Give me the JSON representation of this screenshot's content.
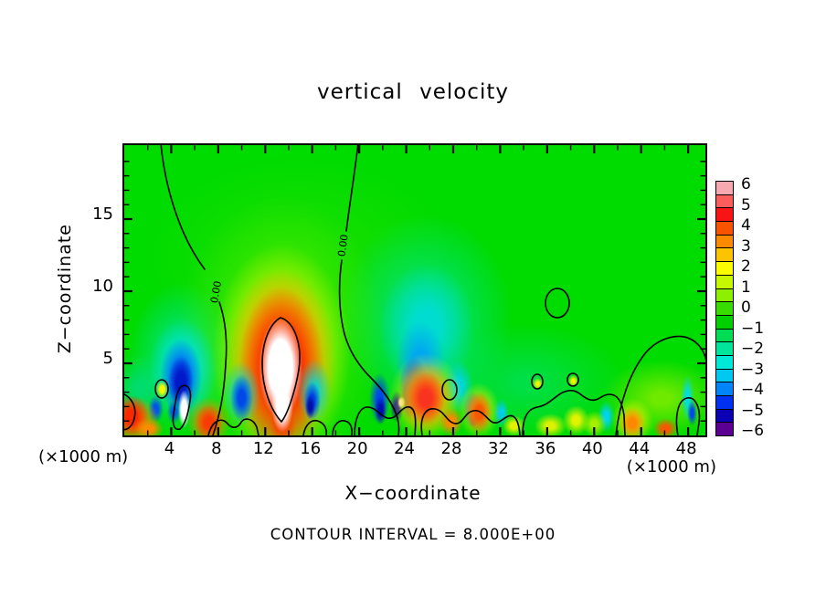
{
  "title": "vertical velocity",
  "plot": {
    "y_axis": {
      "label": "Z−coordinate",
      "unit": "(×1000 m)",
      "tick_labels": [
        {
          "v": 5,
          "label": "5"
        },
        {
          "v": 10,
          "label": "10"
        },
        {
          "v": 15,
          "label": "15"
        }
      ]
    },
    "x_axis": {
      "label": "X−coordinate",
      "unit": "(×1000 m)",
      "tick_labels": [
        {
          "v": 4,
          "label": "4"
        },
        {
          "v": 8,
          "label": "8"
        },
        {
          "v": 12,
          "label": "12"
        },
        {
          "v": 16,
          "label": "16"
        },
        {
          "v": 20,
          "label": "20"
        },
        {
          "v": 24,
          "label": "24"
        },
        {
          "v": 28,
          "label": "28"
        },
        {
          "v": 32,
          "label": "32"
        },
        {
          "v": 36,
          "label": "36"
        },
        {
          "v": 40,
          "label": "40"
        },
        {
          "v": 44,
          "label": "44"
        },
        {
          "v": 48,
          "label": "48"
        }
      ]
    },
    "zero_contour_text": "0.00"
  },
  "footer": {
    "contour_interval": "CONTOUR INTERVAL = 8.000E+00"
  },
  "colorbar": {
    "labels": [
      "6",
      "5",
      "4",
      "3",
      "2",
      "1",
      "0",
      "−1",
      "−2",
      "−3",
      "−4",
      "−5",
      "−6"
    ],
    "colors": [
      "#f8a8b0",
      "#fb5c5c",
      "#f81414",
      "#f85400",
      "#fb8a00",
      "#fcc400",
      "#fcfc00",
      "#c8f800",
      "#8cf000",
      "#38dc00",
      "#00d000",
      "#00dc54",
      "#00e49c",
      "#00e8d8",
      "#00c8f0",
      "#0084f8",
      "#0030f0",
      "#0c00b4",
      "#5c0094"
    ]
  },
  "chart_data": {
    "type": "filled_contour",
    "title": "vertical velocity",
    "xlabel": "X−coordinate",
    "ylabel": "Z−coordinate",
    "x_unit": "(×1000 m)",
    "y_unit": "(×1000 m)",
    "x_range": [
      0,
      49.5
    ],
    "y_range": [
      0,
      20.1
    ],
    "x_ticks": [
      4,
      8,
      12,
      16,
      20,
      24,
      28,
      32,
      36,
      40,
      44,
      48
    ],
    "y_ticks": [
      5,
      10,
      15
    ],
    "contour_interval": 8.0,
    "zero_contour_label": "0.00",
    "colorbar_levels": [
      6,
      5,
      4,
      3,
      2,
      1,
      0,
      -1,
      -2,
      -3,
      -4,
      -5,
      -6
    ],
    "background_value_color": "#00db00",
    "features": [
      "broad green field of near-zero vertical velocity",
      "strong updraft plume centered near x=13.5 reaching z≈9, white core exceeds top of scale",
      "deep blue downdraft cores near x=5.5 and x=23 below z≈8, small off-scale white slivers",
      "shallow turbulent layer of alternating warm (updraft) and cool (downdraft) cells below z≈3 across the domain",
      "zero contour lines labeled 0.00 descend from domain top near x=3 and x=19",
      "small closed zero-contour oval near x=37, z≈9",
      "broad zero-contour dome over the boundary layer near x=44-49"
    ],
    "blobs": [
      [
        "glow-top",
        190,
        120,
        340,
        220,
        "#32e400",
        10,
        0.5
      ],
      [
        "teal-tint-right",
        330,
        190,
        190,
        230,
        "#00e6a8",
        15,
        0.75
      ],
      [
        "teal-tint-left",
        64,
        235,
        120,
        170,
        "#00e6b0",
        15,
        0.8
      ],
      [
        "spring-tint-midright",
        440,
        260,
        220,
        130,
        "#00e49c",
        10,
        0.45
      ],
      [
        "cyan-left-low",
        14,
        268,
        70,
        80,
        "#00dcc8",
        15,
        0.5
      ],
      [
        "hill-fill",
        588,
        277,
        130,
        85,
        "#94ee00",
        15,
        0.75
      ],
      [
        "plume-halo",
        172,
        215,
        230,
        320,
        "#52ec00",
        18,
        0.9
      ],
      [
        "plume-yellow",
        172,
        228,
        152,
        240,
        "#f2f800",
        30,
        0.95
      ],
      [
        "plume-orange",
        172,
        239,
        120,
        208,
        "#fb8c00",
        32,
        1
      ],
      [
        "plume-red",
        172,
        246,
        94,
        182,
        "#f81c00",
        34,
        1
      ],
      [
        "plume-red-base",
        173,
        306,
        30,
        40,
        "#f84000",
        30,
        1
      ],
      [
        "plume-white",
        171,
        244,
        48,
        112,
        "#ffffff",
        55,
        1
      ],
      [
        "plume-white-tip",
        173,
        284,
        24,
        62,
        "#ffffff",
        50,
        1
      ],
      [
        "ld-cyan",
        64,
        246,
        74,
        112,
        "#00e0e0",
        28,
        0.95
      ],
      [
        "ld-blue",
        62,
        254,
        46,
        84,
        "#0060f4",
        30,
        1
      ],
      [
        "ld-dark",
        62,
        260,
        28,
        58,
        "#0018c8",
        35,
        1
      ],
      [
        "ld-blue2",
        34,
        289,
        17,
        30,
        "#0054ec",
        30,
        1
      ],
      [
        "ld-blue3",
        54,
        292,
        15,
        26,
        "#0054ec",
        30,
        1
      ],
      [
        "ld-yellow",
        41,
        267,
        13,
        19,
        "#f4f800",
        40,
        1
      ],
      [
        "ld-white",
        65,
        289,
        13,
        42,
        "#ffffff",
        45,
        1
      ],
      [
        "rd-cyan",
        331,
        200,
        104,
        140,
        "#00dcd4",
        25,
        0.95
      ],
      [
        "rd-sky",
        324,
        240,
        54,
        96,
        "#00a8f0",
        30,
        1
      ],
      [
        "rd-blue",
        317,
        264,
        32,
        64,
        "#0040e8",
        32,
        1
      ],
      [
        "rd-dark",
        313,
        278,
        20,
        44,
        "#0010b4",
        35,
        1
      ],
      [
        "m1-cyanring",
        128,
        273,
        42,
        72,
        "#00d4dc",
        22,
        0.9
      ],
      [
        "m1-blue",
        128,
        277,
        25,
        52,
        "#0048e8",
        30,
        1
      ],
      [
        "m2-cyan",
        208,
        270,
        38,
        72,
        "#00d8d8",
        22,
        0.9
      ],
      [
        "m2-blue",
        205,
        280,
        19,
        42,
        "#0040e4",
        30,
        1
      ],
      [
        "m2-dark",
        203,
        286,
        11,
        27,
        "#0010a8",
        35,
        1
      ],
      [
        "m4-blue",
        279,
        278,
        23,
        58,
        "#0048e8",
        28,
        1
      ],
      [
        "m4-dark",
        280,
        290,
        13,
        31,
        "#000cb0",
        35,
        1
      ],
      [
        "m5-navy",
        298,
        286,
        15,
        35,
        "#0808a0",
        32,
        1
      ],
      [
        "rd-white",
        303,
        282,
        9,
        14,
        "#ffffff",
        45,
        1
      ],
      [
        "m6-cyan",
        366,
        264,
        32,
        58,
        "#00d4e8",
        25,
        0.95
      ],
      [
        "m7-blue",
        381,
        290,
        21,
        40,
        "#0040e8",
        30,
        1
      ],
      [
        "m7-dark",
        382,
        297,
        11,
        23,
        "#30009c",
        38,
        1
      ],
      [
        "m8-cyan",
        412,
        293,
        17,
        31,
        "#00ccec",
        28,
        1
      ],
      [
        "m9-cyan",
        527,
        297,
        19,
        35,
        "#00d4ec",
        28,
        1
      ],
      [
        "m10-cyan",
        616,
        277,
        15,
        52,
        "#00dce0",
        25,
        1
      ],
      [
        "m10-blue",
        621,
        293,
        11,
        29,
        "#0048e8",
        30,
        1
      ],
      [
        "w1-orange",
        11,
        301,
        54,
        52,
        "#fb8800",
        25,
        1
      ],
      [
        "w1-red",
        8,
        297,
        38,
        46,
        "#f82800",
        30,
        1
      ],
      [
        "w2-orange",
        27,
        311,
        32,
        24,
        "#fb8c00",
        30,
        1
      ],
      [
        "w4-orange",
        92,
        303,
        48,
        54,
        "#fb8800",
        22,
        0.95
      ],
      [
        "w4-red",
        92,
        304,
        31,
        40,
        "#f83c00",
        30,
        1
      ],
      [
        "w5-yellow",
        330,
        277,
        82,
        98,
        "#f0f400",
        22,
        0.95
      ],
      [
        "w5-orange",
        330,
        277,
        62,
        78,
        "#fb8c00",
        28,
        1
      ],
      [
        "w5-red",
        330,
        277,
        42,
        58,
        "#f83420",
        30,
        1
      ],
      [
        "w6-orange",
        357,
        303,
        27,
        32,
        "#fb8800",
        28,
        1
      ],
      [
        "w7-yellow",
        388,
        291,
        46,
        62,
        "#eef200",
        20,
        0.9
      ],
      [
        "w7-red",
        388,
        293,
        29,
        46,
        "#f85800",
        30,
        1
      ],
      [
        "w8-yellow",
        426,
        307,
        25,
        23,
        "#eef200",
        30,
        0.95
      ],
      [
        "w9-yellow",
        466,
        307,
        35,
        27,
        "#e8f200",
        28,
        0.95
      ],
      [
        "w10-yellow",
        494,
        301,
        29,
        33,
        "#ecf400",
        28,
        0.95
      ],
      [
        "w11-ygreen",
        514,
        305,
        27,
        29,
        "#acf000",
        28,
        0.95
      ],
      [
        "w12-yellow",
        556,
        303,
        46,
        52,
        "#eef200",
        20,
        0.9
      ],
      [
        "w12-orange",
        556,
        304,
        28,
        35,
        "#fb8800",
        30,
        1
      ],
      [
        "w13-red",
        592,
        310,
        27,
        23,
        "#f85800",
        30,
        1
      ],
      [
        "w15a-yellow",
        452,
        261,
        11,
        13,
        "#f0f400",
        35,
        1
      ],
      [
        "w15b-yellow",
        491,
        258,
        11,
        13,
        "#f0f400",
        35,
        1
      ]
    ]
  }
}
